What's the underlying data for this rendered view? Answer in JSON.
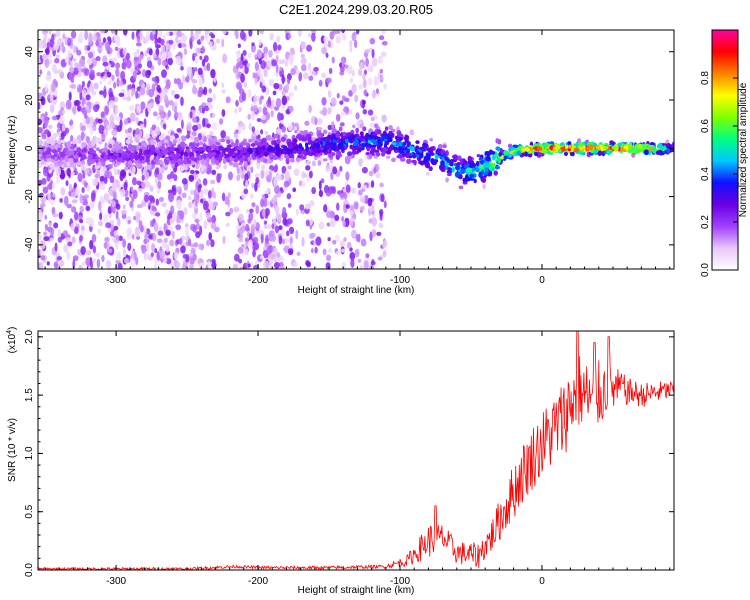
{
  "title": "C2E1.2024.299.03.20.R05",
  "chart_data": [
    {
      "type": "heatmap",
      "xlabel": "Height of straight line (km)",
      "ylabel": "Frequency (Hz)",
      "xlim": [
        -355,
        93
      ],
      "ylim": [
        -50,
        49
      ],
      "x_ticks": [
        -300,
        -200,
        -100,
        0
      ],
      "x_tick_labels": [
        "-300",
        "-200",
        "-100",
        "0"
      ],
      "y_ticks": [
        -40,
        -20,
        0,
        20,
        40
      ],
      "y_tick_labels": [
        "-40",
        "-20",
        "0",
        "20",
        "40"
      ],
      "colorbar": {
        "label": "Normalized spectral amplitude",
        "range": [
          0,
          1
        ],
        "ticks": [
          0,
          0.2,
          0.4,
          0.6,
          0.8
        ],
        "tick_labels": [
          "0.0",
          "0.2",
          "0.4",
          "0.6",
          "0.8"
        ],
        "colors": [
          "#ffffff",
          "#e8c8f8",
          "#a040ff",
          "#6a00e0",
          "#1010ff",
          "#00c8ff",
          "#00ff80",
          "#80ff00",
          "#ffff00",
          "#ff8000",
          "#ff0000",
          "#ff00a0"
        ]
      },
      "ridge_frequency": [
        {
          "x": -355,
          "y": -2
        },
        {
          "x": -300,
          "y": -3
        },
        {
          "x": -250,
          "y": -2
        },
        {
          "x": -200,
          "y": -1
        },
        {
          "x": -150,
          "y": 2
        },
        {
          "x": -110,
          "y": 3
        },
        {
          "x": -90,
          "y": -1
        },
        {
          "x": -70,
          "y": -5
        },
        {
          "x": -55,
          "y": -10
        },
        {
          "x": -45,
          "y": -9
        },
        {
          "x": -30,
          "y": -4
        },
        {
          "x": -20,
          "y": -1
        },
        {
          "x": 0,
          "y": 0
        },
        {
          "x": 50,
          "y": 0
        },
        {
          "x": 93,
          "y": 0
        }
      ],
      "ridge_amplitude": [
        {
          "x": -355,
          "y": 0.2
        },
        {
          "x": -300,
          "y": 0.25
        },
        {
          "x": -200,
          "y": 0.3
        },
        {
          "x": -150,
          "y": 0.4
        },
        {
          "x": -100,
          "y": 0.45
        },
        {
          "x": -60,
          "y": 0.5
        },
        {
          "x": -30,
          "y": 0.7
        },
        {
          "x": 0,
          "y": 0.95
        },
        {
          "x": 50,
          "y": 0.95
        },
        {
          "x": 80,
          "y": 0.8
        },
        {
          "x": 93,
          "y": 0.4
        }
      ],
      "scatter_extent_x": [
        -355,
        -110
      ],
      "grid": false
    },
    {
      "type": "line",
      "xlabel": "Height of straight line (km)",
      "ylabel": "SNR (10 * v/v)",
      "scale_label": "(x10",
      "scale_exponent": "4",
      "xlim": [
        -355,
        93
      ],
      "ylim": [
        0,
        2.05
      ],
      "x_ticks": [
        -300,
        -200,
        -100,
        0
      ],
      "x_tick_labels": [
        "-300",
        "-200",
        "-100",
        "0"
      ],
      "y_ticks": [
        0,
        0.5,
        1.0,
        1.5,
        2.0
      ],
      "y_tick_labels": [
        "0.0",
        "0.5",
        "1.0",
        "1.5",
        "2.0"
      ],
      "color": "#ff0000",
      "grid": false,
      "series": [
        {
          "trend": [
            {
              "x": -355,
              "y": 0.01
            },
            {
              "x": -250,
              "y": 0.01
            },
            {
              "x": -215,
              "y": 0.03
            },
            {
              "x": -200,
              "y": 0.02
            },
            {
              "x": -150,
              "y": 0.02
            },
            {
              "x": -110,
              "y": 0.03
            },
            {
              "x": -95,
              "y": 0.08
            },
            {
              "x": -80,
              "y": 0.25
            },
            {
              "x": -70,
              "y": 0.28
            },
            {
              "x": -60,
              "y": 0.15
            },
            {
              "x": -45,
              "y": 0.12
            },
            {
              "x": -35,
              "y": 0.3
            },
            {
              "x": -25,
              "y": 0.55
            },
            {
              "x": -15,
              "y": 0.8
            },
            {
              "x": -5,
              "y": 1.0
            },
            {
              "x": 5,
              "y": 1.15
            },
            {
              "x": 15,
              "y": 1.3
            },
            {
              "x": 25,
              "y": 1.55
            },
            {
              "x": 35,
              "y": 1.45
            },
            {
              "x": 45,
              "y": 1.55
            },
            {
              "x": 55,
              "y": 1.55
            },
            {
              "x": 70,
              "y": 1.5
            },
            {
              "x": 93,
              "y": 1.55
            }
          ],
          "noise_amplitude": [
            {
              "x": -355,
              "y": 0.01
            },
            {
              "x": -110,
              "y": 0.015
            },
            {
              "x": -95,
              "y": 0.05
            },
            {
              "x": -80,
              "y": 0.15
            },
            {
              "x": -60,
              "y": 0.1
            },
            {
              "x": -40,
              "y": 0.12
            },
            {
              "x": -20,
              "y": 0.25
            },
            {
              "x": 0,
              "y": 0.3
            },
            {
              "x": 20,
              "y": 0.35
            },
            {
              "x": 40,
              "y": 0.3
            },
            {
              "x": 60,
              "y": 0.12
            },
            {
              "x": 93,
              "y": 0.08
            }
          ],
          "peaks": [
            {
              "x": -75,
              "y": 0.55
            },
            {
              "x": 25,
              "y": 2.05
            },
            {
              "x": 37,
              "y": 1.95
            },
            {
              "x": 47,
              "y": 2.0
            },
            {
              "x": 57,
              "y": 1.6
            }
          ]
        }
      ]
    }
  ]
}
